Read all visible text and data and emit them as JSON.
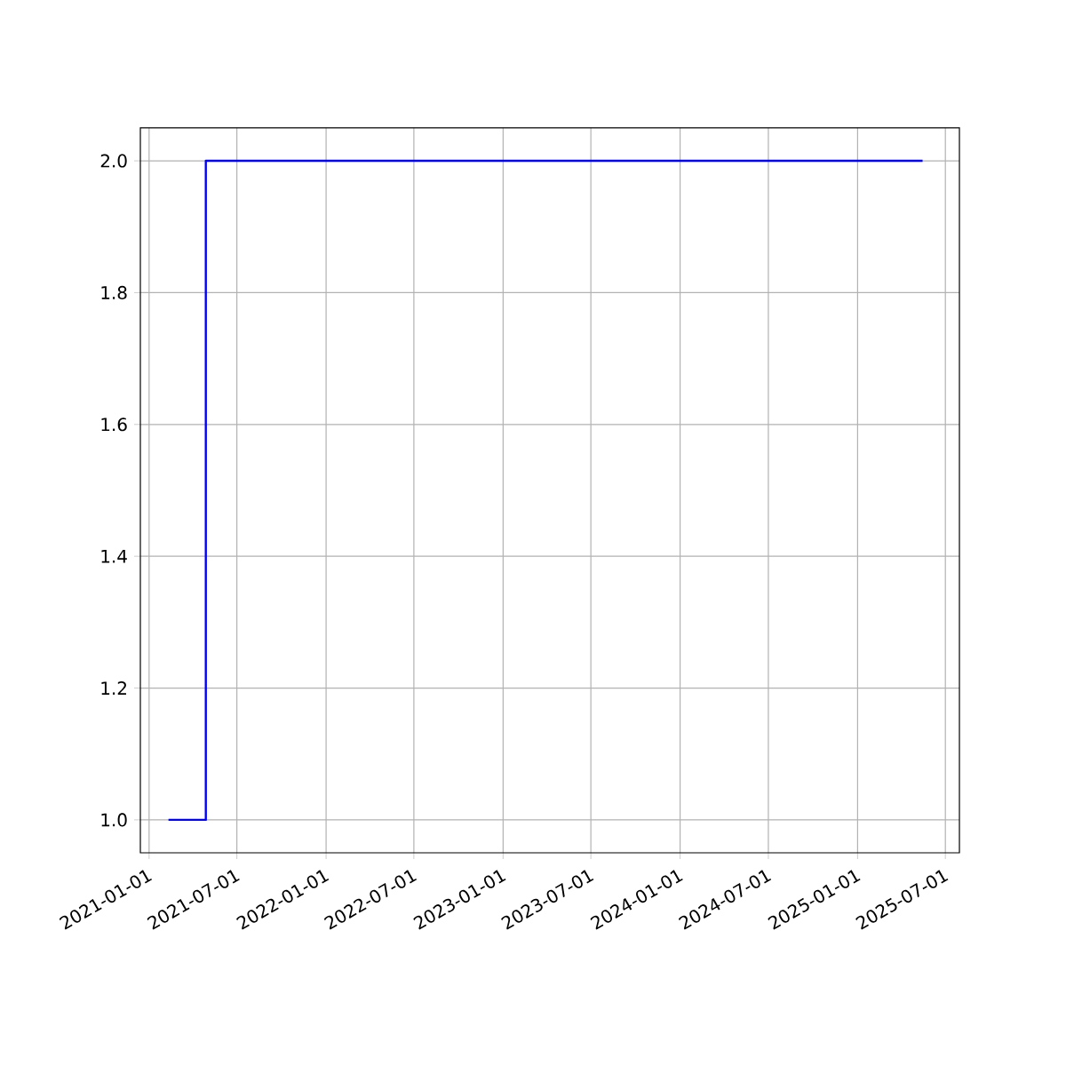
{
  "chart_data": {
    "type": "step",
    "x": [
      "2021-02-10",
      "2021-04-28",
      "2025-05-15"
    ],
    "values": [
      1,
      2,
      2
    ],
    "color": "#0000ff",
    "xlim": [
      "2020-12-14",
      "2025-07-30"
    ],
    "xticks": [
      "2021-01-01",
      "2021-07-01",
      "2022-01-01",
      "2022-07-01",
      "2023-01-01",
      "2023-07-01",
      "2024-01-01",
      "2024-07-01",
      "2025-01-01",
      "2025-07-01"
    ],
    "ylim": [
      0.95,
      2.05
    ],
    "yticks": [
      {
        "value": 1,
        "label": "1.0"
      },
      {
        "value": 1.2,
        "label": "1.2"
      },
      {
        "value": 1.4,
        "label": "1.4"
      },
      {
        "value": 1.6,
        "label": "1.6"
      },
      {
        "value": 1.8,
        "label": "1.8"
      },
      {
        "value": 2,
        "label": "2.0"
      }
    ],
    "grid": true
  }
}
